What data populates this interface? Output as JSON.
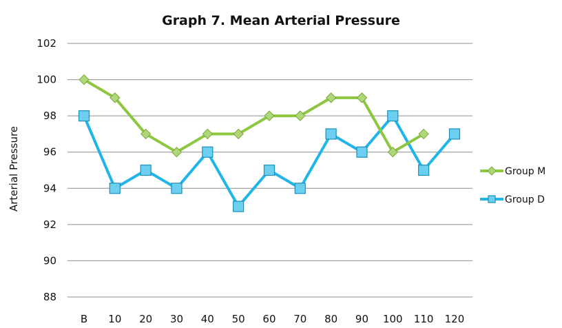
{
  "chart_data": {
    "type": "line",
    "title": "Graph 7. Mean Arterial Pressure",
    "xlabel": "",
    "ylabel": "Arterial Pressure",
    "categories": [
      "B",
      "10",
      "20",
      "30",
      "40",
      "50",
      "60",
      "70",
      "80",
      "90",
      "100",
      "110",
      "120"
    ],
    "ylim": [
      88,
      102
    ],
    "yticks": [
      88,
      90,
      92,
      94,
      96,
      98,
      100,
      102
    ],
    "grid": true,
    "legend_position": "right",
    "series": [
      {
        "name": "Group M",
        "color": "#8DC63F",
        "marker": "diamond",
        "values": [
          100,
          99,
          97,
          96,
          97,
          97,
          98,
          98,
          99,
          99,
          96,
          97,
          null
        ]
      },
      {
        "name": "Group D",
        "color": "#1FB5E8",
        "marker": "square",
        "values": [
          98,
          94,
          95,
          94,
          96,
          93,
          95,
          94,
          97,
          96,
          98,
          95,
          97
        ]
      }
    ]
  }
}
